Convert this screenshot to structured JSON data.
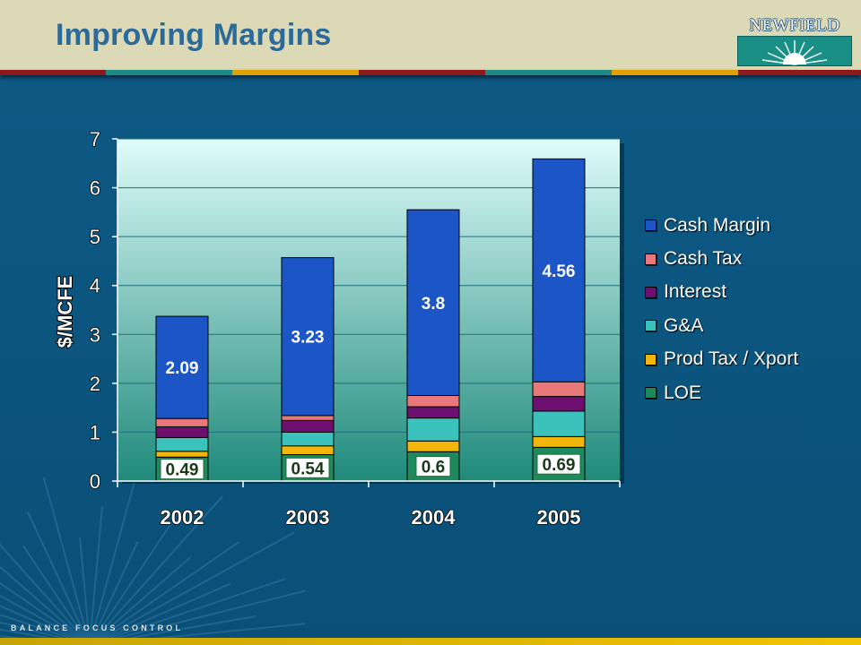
{
  "slide": {
    "title": "Improving Margins",
    "tagline": "BALANCE FOCUS CONTROL"
  },
  "logo": {
    "text": "NEWFIELD"
  },
  "colors": {
    "header_bg": "#dcd9b6",
    "title": "#2b6a99",
    "stripe": [
      "#8c1a1a",
      "#1d8a84",
      "#e0a000",
      "#8c1a1a",
      "#1d8a84",
      "#e0a000",
      "#8c1a1a"
    ],
    "plot_top": "#dffcfc",
    "plot_bottom": "#1f8a7a"
  },
  "chart_data": {
    "type": "bar",
    "stacked": true,
    "categories": [
      "2002",
      "2003",
      "2004",
      "2005"
    ],
    "ylabel": "$/MCFE",
    "xlabel": "",
    "ylim": [
      0,
      7
    ],
    "yticks": [
      0,
      1,
      2,
      3,
      4,
      5,
      6,
      7
    ],
    "grid": true,
    "legend_position": "right",
    "series": [
      {
        "name": "LOE",
        "color": "#1e8a5c",
        "values": [
          0.49,
          0.54,
          0.6,
          0.69
        ]
      },
      {
        "name": "Prod Tax / Xport",
        "color": "#f2b50a",
        "values": [
          0.12,
          0.18,
          0.22,
          0.22
        ]
      },
      {
        "name": "G&A",
        "color": "#3bc2bd",
        "values": [
          0.28,
          0.28,
          0.47,
          0.52
        ]
      },
      {
        "name": "Interest",
        "color": "#6e1070",
        "values": [
          0.22,
          0.24,
          0.23,
          0.3
        ]
      },
      {
        "name": "Cash Tax",
        "color": "#e8787a",
        "values": [
          0.17,
          0.1,
          0.23,
          0.3
        ]
      },
      {
        "name": "Cash Margin",
        "color": "#1b55c6",
        "values": [
          2.09,
          3.23,
          3.8,
          4.56
        ]
      }
    ],
    "data_labels": [
      {
        "series": "LOE",
        "values": [
          "0.49",
          "0.54",
          "0.6",
          "0.69"
        ]
      },
      {
        "series": "Cash Margin",
        "values": [
          "2.09",
          "3.23",
          "3.8",
          "4.56"
        ]
      }
    ],
    "legend_order": [
      "Cash Margin",
      "Cash Tax",
      "Interest",
      "G&A",
      "Prod Tax / Xport",
      "LOE"
    ]
  }
}
